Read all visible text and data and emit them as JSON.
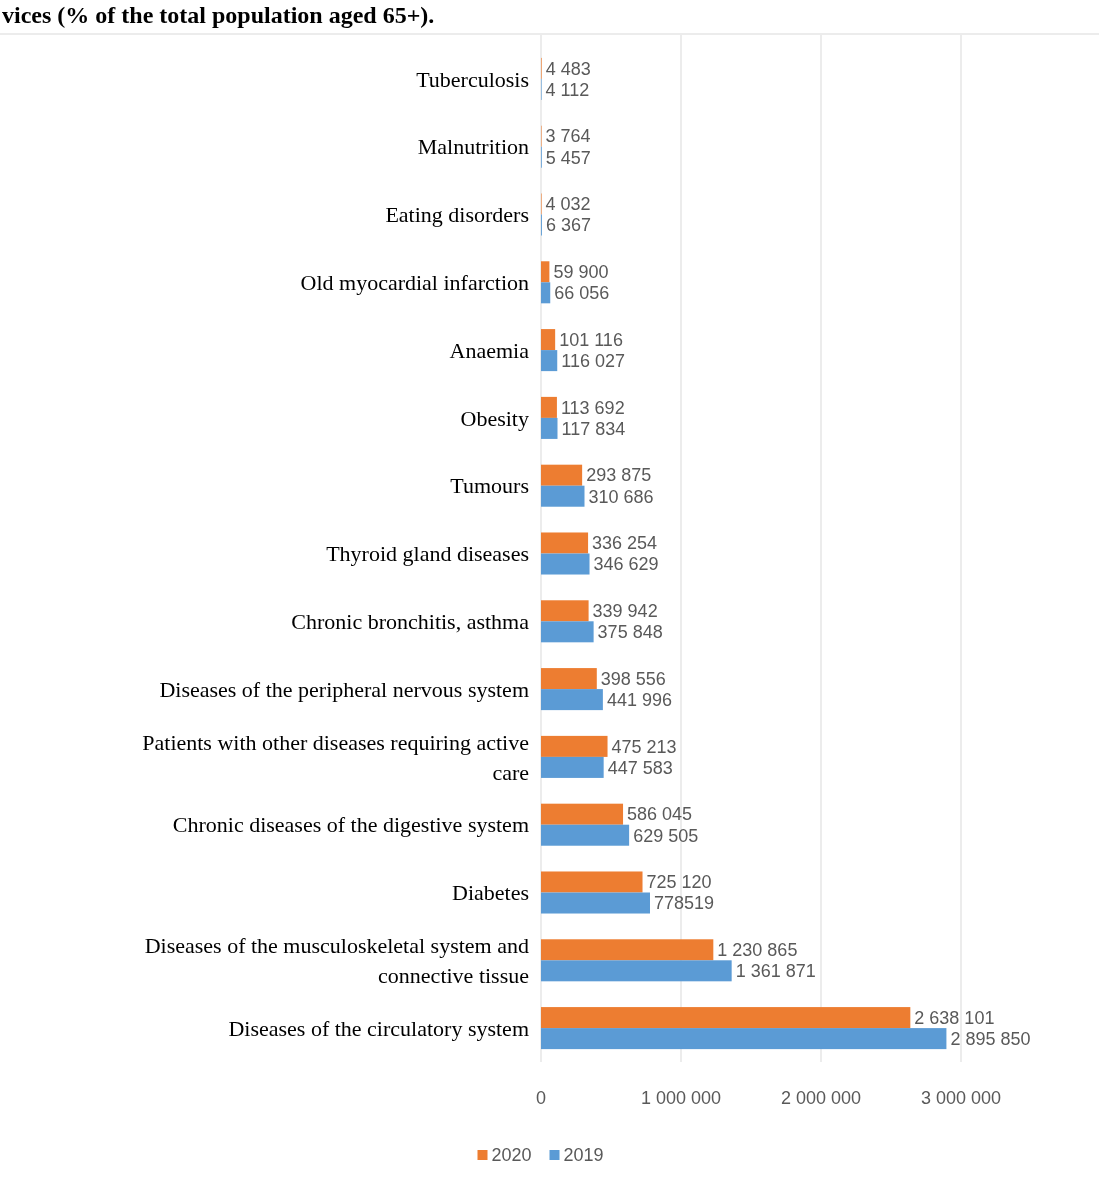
{
  "chart_data": {
    "type": "bar",
    "orientation": "horizontal",
    "title": "vices (% of the total population aged 65+).",
    "categories": [
      "Tuberculosis",
      "Malnutrition",
      "Eating disorders",
      "Old myocardial infarction",
      "Anaemia",
      "Obesity",
      "Tumours",
      "Thyroid gland diseases",
      "Chronic bronchitis, asthma",
      "Diseases of the peripheral nervous system",
      "Patients with other diseases requiring active care",
      "Chronic diseases of the digestive system",
      "Diabetes",
      "Diseases of the musculoskeletal system and connective tissue",
      "Diseases of the circulatory system"
    ],
    "series": [
      {
        "name": "2020",
        "color": "#ed7d31",
        "values": [
          4483,
          3764,
          4032,
          59900,
          101116,
          113692,
          293875,
          336254,
          339942,
          398556,
          475213,
          586045,
          725120,
          1230865,
          2638101
        ],
        "value_labels": [
          "4 483",
          "3 764",
          "4 032",
          "59 900",
          "101 116",
          "113 692",
          "293 875",
          "336 254",
          "339 942",
          "398 556",
          "475 213",
          "586 045",
          "725 120",
          "1 230 865",
          "2 638 101"
        ]
      },
      {
        "name": "2019",
        "color": "#5b9bd5",
        "values": [
          4112,
          5457,
          6367,
          66056,
          116027,
          117834,
          310686,
          346629,
          375848,
          441996,
          447583,
          629505,
          778519,
          1361871,
          2895850
        ],
        "value_labels": [
          "4 112",
          "5 457",
          "6 367",
          "66 056",
          "116 027",
          "117 834",
          "310 686",
          "346 629",
          "375 848",
          "441 996",
          "447 583",
          "629 505",
          "778519",
          "1 361 871",
          "2 895 850"
        ]
      }
    ],
    "xlim": [
      0,
      3000000
    ],
    "xticks": [
      0,
      {
        "value": 1000000,
        "label": "1 000 000"
      },
      {
        "value": 2000000,
        "label": "2 000 000"
      },
      {
        "value": 3000000,
        "label": "3 000 000"
      }
    ],
    "grid": "x",
    "legend": "bottom"
  }
}
